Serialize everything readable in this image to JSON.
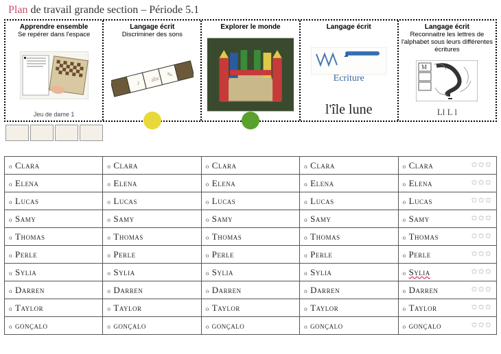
{
  "header": {
    "accent_word": "Plan",
    "rest": " de travail grande section – Période 5.1"
  },
  "activities": [
    {
      "title": "Apprendre ensemble",
      "subtitle": "Se repérer dans l'espace",
      "caption": "Jeu de dame 1",
      "dot_color": null
    },
    {
      "title": "Langage écrit",
      "subtitle": "Discriminer des sons",
      "caption": "",
      "dot_color": "#e8d83a"
    },
    {
      "title": "Explorer le monde",
      "subtitle": "",
      "caption": "",
      "dot_color": "#5aa02c"
    },
    {
      "title": "Langage écrit",
      "subtitle": "",
      "caption": "l'île lune",
      "cursive_label": "Ecriture",
      "dot_color": null
    },
    {
      "title": "Langage écrit",
      "subtitle": "Reconnaitre les lettres de l'alphabet sous leurs différentes écritures",
      "caption": "Ll L l",
      "dot_color": null
    }
  ],
  "students": [
    "Clara",
    "Elena",
    "Lucas",
    "Samy",
    "Thomas",
    "Perle",
    "Sylia",
    "Darren",
    "Taylor",
    "gonçalo"
  ],
  "columns": 5,
  "stars_column_index": 4,
  "wavy_cell": {
    "row": 6,
    "col": 4
  },
  "colors": {
    "accent": "#d04a6a",
    "yellow_dot": "#e8d83a",
    "green_dot": "#5aa02c",
    "star": "#aaaaaa"
  }
}
